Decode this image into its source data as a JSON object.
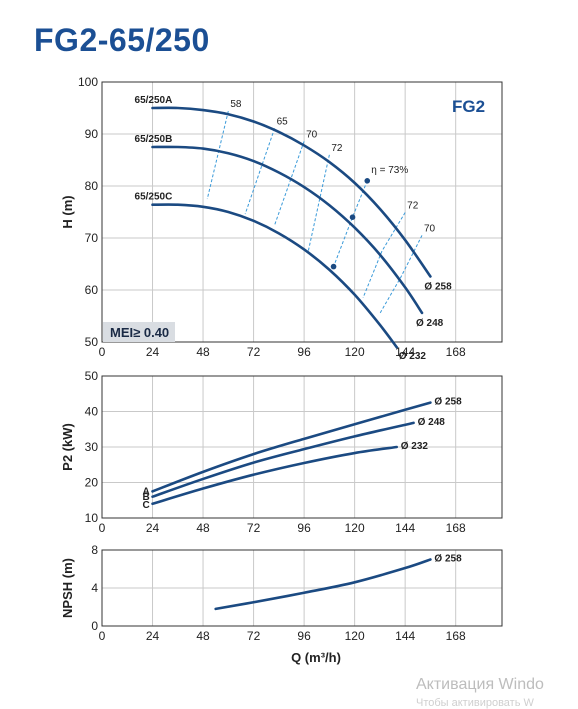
{
  "title": "FG2-65/250",
  "series_tag": "FG2",
  "mei_label": "MEI≥ 0.40",
  "xlabel": "Q (m³/h)",
  "watermark": {
    "line1": "Активация Windo",
    "line2": "Чтобы активировать W"
  },
  "chart_data": [
    {
      "type": "line",
      "panel": "head",
      "xlabel": "",
      "ylabel": "H (m)",
      "xlim": [
        0,
        190
      ],
      "ylim": [
        50,
        100
      ],
      "xticks": [
        0,
        24,
        48,
        72,
        96,
        120,
        144,
        168
      ],
      "yticks": [
        50,
        60,
        70,
        80,
        90,
        100
      ],
      "grid": true,
      "series": [
        {
          "name": "65/250A",
          "diameter": "Ø 258",
          "x": [
            24,
            36,
            48,
            60,
            72,
            84,
            96,
            108,
            120,
            132,
            144,
            156
          ],
          "y": [
            95.0,
            95.0,
            94.6,
            93.8,
            92.4,
            90.4,
            87.8,
            84.6,
            80.6,
            75.6,
            69.6,
            62.6
          ]
        },
        {
          "name": "65/250B",
          "diameter": "Ø 248",
          "x": [
            24,
            36,
            48,
            60,
            72,
            84,
            96,
            108,
            120,
            132,
            144,
            152
          ],
          "y": [
            87.5,
            87.5,
            87.2,
            86.3,
            84.8,
            82.6,
            79.8,
            76.3,
            72.0,
            66.8,
            60.5,
            55.6
          ]
        },
        {
          "name": "65/250C",
          "diameter": "Ø 232",
          "x": [
            24,
            36,
            48,
            60,
            72,
            84,
            96,
            108,
            120,
            132,
            140
          ],
          "y": [
            76.4,
            76.4,
            76.0,
            75.0,
            73.3,
            70.9,
            67.8,
            63.9,
            59.1,
            53.3,
            49.0
          ]
        }
      ],
      "efficiency_labels": [
        "58",
        "65",
        "70",
        "72",
        "η = 73%",
        "72",
        "70"
      ],
      "efficiency_lines": [
        {
          "label": "58",
          "points": [
            [
              60,
              94.4
            ],
            [
              50,
              77.5
            ]
          ]
        },
        {
          "label": "65",
          "points": [
            [
              82,
              91.1
            ],
            [
              68,
              74.6
            ]
          ]
        },
        {
          "label": "70",
          "points": [
            [
              96,
              88.6
            ],
            [
              82,
              72.5
            ]
          ]
        },
        {
          "label": "72",
          "points": [
            [
              108,
              86.0
            ],
            [
              98,
              67.5
            ]
          ]
        },
        {
          "label": "η = 73%",
          "points": [
            [
              126,
              81.0
            ],
            [
              119,
              74.0
            ],
            [
              110,
              64.5
            ]
          ]
        },
        {
          "label": "72",
          "points": [
            [
              144,
              74.9
            ],
            [
              133,
              67.5
            ],
            [
              124,
              58.5
            ]
          ]
        },
        {
          "label": "70",
          "points": [
            [
              152,
              70.5
            ],
            [
              142,
              62.5
            ],
            [
              132,
              55.5
            ]
          ]
        }
      ]
    },
    {
      "type": "line",
      "panel": "power",
      "xlabel": "",
      "ylabel": "P2 (kW)",
      "xlim": [
        0,
        190
      ],
      "ylim": [
        10,
        50
      ],
      "xticks": [
        0,
        24,
        48,
        72,
        96,
        120,
        144,
        168
      ],
      "yticks": [
        10,
        20,
        30,
        40,
        50
      ],
      "grid": true,
      "series": [
        {
          "name": "A",
          "diameter": "Ø 258",
          "x": [
            24,
            48,
            72,
            96,
            120,
            144,
            156
          ],
          "y": [
            17.5,
            23.0,
            28.0,
            32.3,
            36.4,
            40.5,
            42.5
          ]
        },
        {
          "name": "B",
          "diameter": "Ø 248",
          "x": [
            24,
            48,
            72,
            96,
            120,
            148
          ],
          "y": [
            16.0,
            21.0,
            25.6,
            29.4,
            33.0,
            36.8
          ]
        },
        {
          "name": "C",
          "diameter": "Ø 232",
          "x": [
            24,
            48,
            72,
            96,
            120,
            140
          ],
          "y": [
            14.0,
            18.3,
            22.2,
            25.5,
            28.3,
            30.0
          ]
        }
      ]
    },
    {
      "type": "line",
      "panel": "npsh",
      "xlabel": "Q (m³/h)",
      "ylabel": "NPSH (m)",
      "xlim": [
        0,
        190
      ],
      "ylim": [
        0,
        8
      ],
      "xticks": [
        0,
        24,
        48,
        72,
        96,
        120,
        144,
        168
      ],
      "yticks": [
        0,
        4,
        8
      ],
      "grid": true,
      "series": [
        {
          "name": "",
          "diameter": "Ø 258",
          "x": [
            54,
            72,
            96,
            120,
            144,
            156
          ],
          "y": [
            1.8,
            2.5,
            3.5,
            4.6,
            6.1,
            7.0
          ]
        }
      ]
    }
  ]
}
